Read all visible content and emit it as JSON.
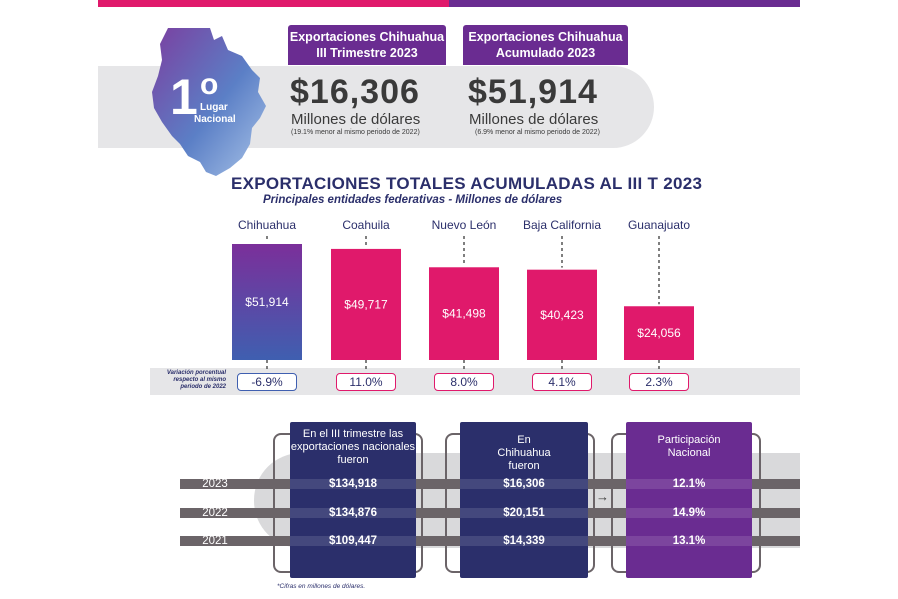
{
  "rank": {
    "number": "1",
    "degree": "o",
    "line1": "Lugar",
    "line2": "Nacional"
  },
  "kpis": [
    {
      "tag_line1": "Exportaciones Chihuahua",
      "tag_line2": "III Trimestre 2023",
      "value": "$16,306",
      "unit": "Millones de dólares",
      "note": "(19.1% menor al mismo periodo de 2022)"
    },
    {
      "tag_line1": "Exportaciones Chihuahua",
      "tag_line2": "Acumulado 2023",
      "value": "$51,914",
      "unit": "Millones de dólares",
      "note": "(6.9% menor al mismo periodo de 2022)"
    }
  ],
  "chart_data": {
    "type": "bar",
    "title": "EXPORTACIONES TOTALES ACUMULADAS AL III T 2023",
    "subtitle": "Principales entidades federativas - Millones de dólares",
    "categories": [
      "Chihuahua",
      "Coahuila",
      "Nuevo León",
      "Baja California",
      "Guanajuato"
    ],
    "values": [
      51914,
      49717,
      41498,
      40423,
      24056
    ],
    "value_labels": [
      "$51,914",
      "$49,717",
      "$41,498",
      "$40,423",
      "$24,056"
    ],
    "variation_label": "Variación porcentual respecto al mismo periodo de 2022",
    "variations": [
      "-6.9%",
      "11.0%",
      "8.0%",
      "4.1%",
      "2.3%"
    ],
    "colors": {
      "first": [
        "#7b2f9a",
        "#3f4ea8"
      ],
      "others": "#e0196b"
    }
  },
  "table": {
    "years": [
      "2023",
      "2022",
      "2021"
    ],
    "columns": [
      {
        "header": "En el III trimestre las exportaciones nacionales fueron",
        "values": [
          "$134,918",
          "$134,876",
          "$109,447"
        ]
      },
      {
        "header": "En Chihuahua fueron",
        "values": [
          "$16,306",
          "$20,151",
          "$14,339"
        ]
      },
      {
        "header": "Participación Nacional",
        "values": [
          "12.1%",
          "14.9%",
          "13.1%"
        ]
      }
    ],
    "footnote": "*Cifras en millones de dólares.",
    "colors": {
      "navy": "#2b2f6b",
      "purple": "#6a2c91",
      "stripe": "#6b6468"
    }
  }
}
